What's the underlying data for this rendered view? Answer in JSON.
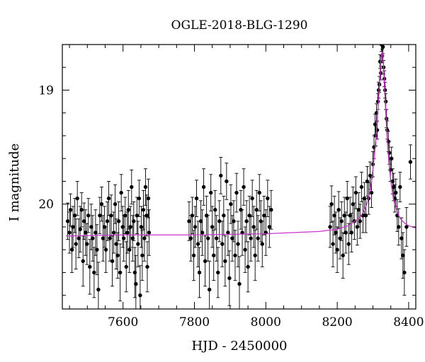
{
  "chart_data": {
    "type": "scatter",
    "title": "OGLE-2018-BLG-1290",
    "xlabel": "HJD - 2450000",
    "ylabel": "I magnitude",
    "xlim": [
      7430,
      8420
    ],
    "ylim": [
      20.92,
      18.6
    ],
    "y_inverted": true,
    "x_ticks": [
      7600,
      7800,
      8000,
      8200,
      8400
    ],
    "y_ticks": [
      19,
      20
    ],
    "x_minor_step": 50,
    "y_minor_step": 0.2,
    "grid": false,
    "legend": "none",
    "colors": {
      "points": "#000000",
      "errorbars": "#000000",
      "model": "#cc33cc"
    },
    "series": [
      {
        "kind": "observations",
        "points": [
          [
            7445,
            20.15,
            0.16
          ],
          [
            7450,
            20.25,
            0.18
          ],
          [
            7453,
            20.05,
            0.14
          ],
          [
            7457,
            20.4,
            0.2
          ],
          [
            7460,
            20.2,
            0.18
          ],
          [
            7465,
            20.1,
            0.15
          ],
          [
            7468,
            20.35,
            0.22
          ],
          [
            7472,
            19.95,
            0.15
          ],
          [
            7476,
            20.3,
            0.17
          ],
          [
            7480,
            20.22,
            0.2
          ],
          [
            7484,
            20.05,
            0.15
          ],
          [
            7488,
            20.5,
            0.22
          ],
          [
            7491,
            20.15,
            0.16
          ],
          [
            7495,
            20.25,
            0.2
          ],
          [
            7499,
            20.35,
            0.18
          ],
          [
            7503,
            20.1,
            0.15
          ],
          [
            7507,
            20.55,
            0.24
          ],
          [
            7511,
            20.2,
            0.2
          ],
          [
            7515,
            20.3,
            0.2
          ],
          [
            7519,
            20.6,
            0.22
          ],
          [
            7523,
            20.25,
            0.2
          ],
          [
            7527,
            20.4,
            0.22
          ],
          [
            7531,
            20.75,
            0.24
          ],
          [
            7535,
            20.1,
            0.16
          ],
          [
            7540,
            20.0,
            0.15
          ],
          [
            7544,
            20.3,
            0.2
          ],
          [
            7548,
            20.2,
            0.18
          ],
          [
            7552,
            20.4,
            0.2
          ],
          [
            7556,
            20.15,
            0.17
          ],
          [
            7560,
            19.95,
            0.15
          ],
          [
            7563,
            20.3,
            0.2
          ],
          [
            7567,
            20.1,
            0.18
          ],
          [
            7570,
            20.5,
            0.22
          ],
          [
            7574,
            20.25,
            0.18
          ],
          [
            7578,
            20.0,
            0.17
          ],
          [
            7581,
            20.35,
            0.22
          ],
          [
            7585,
            20.45,
            0.2
          ],
          [
            7588,
            20.15,
            0.17
          ],
          [
            7592,
            20.6,
            0.25
          ],
          [
            7595,
            19.9,
            0.16
          ],
          [
            7599,
            20.2,
            0.18
          ],
          [
            7602,
            20.3,
            0.2
          ],
          [
            7606,
            20.1,
            0.16
          ],
          [
            7609,
            20.55,
            0.22
          ],
          [
            7612,
            20.25,
            0.18
          ],
          [
            7615,
            20.05,
            0.17
          ],
          [
            7618,
            20.4,
            0.2
          ],
          [
            7621,
            20.2,
            0.18
          ],
          [
            7624,
            19.85,
            0.15
          ],
          [
            7627,
            20.3,
            0.2
          ],
          [
            7630,
            20.15,
            0.17
          ],
          [
            7633,
            20.6,
            0.22
          ],
          [
            7636,
            20.7,
            0.25
          ],
          [
            7639,
            20.1,
            0.16
          ],
          [
            7642,
            20.35,
            0.2
          ],
          [
            7645,
            19.95,
            0.16
          ],
          [
            7648,
            20.8,
            0.26
          ],
          [
            7651,
            20.2,
            0.18
          ],
          [
            7654,
            20.45,
            0.22
          ],
          [
            7657,
            20.05,
            0.17
          ],
          [
            7660,
            20.3,
            0.2
          ],
          [
            7663,
            19.85,
            0.16
          ],
          [
            7666,
            20.1,
            0.18
          ],
          [
            7668,
            20.55,
            0.22
          ],
          [
            7671,
            19.95,
            0.17
          ],
          [
            7673,
            20.25,
            0.2
          ],
          [
            7785,
            20.15,
            0.17
          ],
          [
            7790,
            20.3,
            0.2
          ],
          [
            7794,
            20.1,
            0.16
          ],
          [
            7798,
            20.45,
            0.22
          ],
          [
            7802,
            20.2,
            0.18
          ],
          [
            7806,
            19.95,
            0.16
          ],
          [
            7810,
            20.35,
            0.2
          ],
          [
            7814,
            20.6,
            0.22
          ],
          [
            7818,
            20.15,
            0.18
          ],
          [
            7822,
            20.25,
            0.2
          ],
          [
            7826,
            19.85,
            0.16
          ],
          [
            7830,
            20.5,
            0.22
          ],
          [
            7834,
            20.1,
            0.17
          ],
          [
            7838,
            20.3,
            0.2
          ],
          [
            7842,
            20.75,
            0.25
          ],
          [
            7846,
            19.9,
            0.16
          ],
          [
            7850,
            20.2,
            0.18
          ],
          [
            7854,
            20.45,
            0.22
          ],
          [
            7858,
            20.05,
            0.17
          ],
          [
            7862,
            20.3,
            0.2
          ],
          [
            7866,
            20.6,
            0.22
          ],
          [
            7870,
            20.15,
            0.18
          ],
          [
            7874,
            19.75,
            0.16
          ],
          [
            7878,
            20.35,
            0.2
          ],
          [
            7882,
            20.1,
            0.17
          ],
          [
            7886,
            20.5,
            0.22
          ],
          [
            7890,
            19.8,
            0.16
          ],
          [
            7894,
            20.25,
            0.2
          ],
          [
            7898,
            20.65,
            0.24
          ],
          [
            7902,
            20.0,
            0.17
          ],
          [
            7906,
            20.3,
            0.2
          ],
          [
            7910,
            20.15,
            0.18
          ],
          [
            7914,
            20.45,
            0.22
          ],
          [
            7918,
            19.9,
            0.17
          ],
          [
            7922,
            20.35,
            0.2
          ],
          [
            7926,
            20.7,
            0.24
          ],
          [
            7930,
            20.05,
            0.17
          ],
          [
            7934,
            20.25,
            0.2
          ],
          [
            7938,
            19.85,
            0.16
          ],
          [
            7942,
            20.4,
            0.2
          ],
          [
            7946,
            20.15,
            0.18
          ],
          [
            7950,
            20.55,
            0.22
          ],
          [
            7954,
            20.1,
            0.17
          ],
          [
            7958,
            20.3,
            0.2
          ],
          [
            7962,
            19.95,
            0.16
          ],
          [
            7966,
            20.2,
            0.18
          ],
          [
            7970,
            20.45,
            0.22
          ],
          [
            7974,
            20.05,
            0.17
          ],
          [
            7978,
            20.3,
            0.2
          ],
          [
            7982,
            19.9,
            0.16
          ],
          [
            7986,
            20.15,
            0.18
          ],
          [
            7990,
            20.35,
            0.2
          ],
          [
            7995,
            20.1,
            0.17
          ],
          [
            8000,
            20.25,
            0.2
          ],
          [
            8005,
            19.95,
            0.16
          ],
          [
            8010,
            20.2,
            0.18
          ],
          [
            8015,
            20.05,
            0.17
          ],
          [
            8180,
            20.2,
            0.18
          ],
          [
            8184,
            20.0,
            0.16
          ],
          [
            8188,
            20.35,
            0.2
          ],
          [
            8192,
            20.1,
            0.17
          ],
          [
            8196,
            20.25,
            0.18
          ],
          [
            8200,
            20.4,
            0.2
          ],
          [
            8204,
            20.05,
            0.16
          ],
          [
            8208,
            20.3,
            0.18
          ],
          [
            8212,
            20.15,
            0.17
          ],
          [
            8216,
            20.45,
            0.2
          ],
          [
            8220,
            20.1,
            0.16
          ],
          [
            8224,
            20.25,
            0.18
          ],
          [
            8228,
            19.95,
            0.15
          ],
          [
            8232,
            20.35,
            0.18
          ],
          [
            8236,
            20.1,
            0.16
          ],
          [
            8240,
            20.25,
            0.17
          ],
          [
            8244,
            20.0,
            0.15
          ],
          [
            8248,
            20.15,
            0.16
          ],
          [
            8252,
            19.9,
            0.14
          ],
          [
            8256,
            20.2,
            0.16
          ],
          [
            8260,
            20.05,
            0.15
          ],
          [
            8264,
            20.15,
            0.15
          ],
          [
            8268,
            19.85,
            0.13
          ],
          [
            8272,
            20.1,
            0.15
          ],
          [
            8276,
            19.95,
            0.14
          ],
          [
            8280,
            20.1,
            0.15
          ],
          [
            8284,
            19.8,
            0.13
          ],
          [
            8288,
            19.95,
            0.14
          ],
          [
            8292,
            19.75,
            0.12
          ],
          [
            8296,
            19.9,
            0.13
          ],
          [
            8300,
            19.65,
            0.11
          ],
          [
            8303,
            19.5,
            0.1
          ],
          [
            8306,
            19.3,
            0.09
          ],
          [
            8308,
            19.4,
            0.09
          ],
          [
            8310,
            19.2,
            0.08
          ],
          [
            8312,
            19.35,
            0.08
          ],
          [
            8314,
            19.1,
            0.07
          ],
          [
            8316,
            19.0,
            0.07
          ],
          [
            8318,
            18.95,
            0.07
          ],
          [
            8320,
            18.75,
            0.06
          ],
          [
            8322,
            18.85,
            0.06
          ],
          [
            8324,
            18.6,
            0.06
          ],
          [
            8326,
            18.7,
            0.06
          ],
          [
            8328,
            18.62,
            0.06
          ],
          [
            8330,
            18.8,
            0.06
          ],
          [
            8332,
            18.9,
            0.07
          ],
          [
            8334,
            19.0,
            0.07
          ],
          [
            8336,
            19.1,
            0.07
          ],
          [
            8338,
            19.25,
            0.08
          ],
          [
            8340,
            19.35,
            0.08
          ],
          [
            8343,
            19.45,
            0.09
          ],
          [
            8346,
            19.55,
            0.1
          ],
          [
            8349,
            19.7,
            0.1
          ],
          [
            8352,
            19.6,
            0.1
          ],
          [
            8355,
            19.8,
            0.11
          ],
          [
            8358,
            19.85,
            0.12
          ],
          [
            8361,
            19.95,
            0.12
          ],
          [
            8364,
            19.9,
            0.12
          ],
          [
            8368,
            20.1,
            0.14
          ],
          [
            8372,
            20.2,
            0.16
          ],
          [
            8376,
            19.85,
            0.13
          ],
          [
            8380,
            20.3,
            0.18
          ],
          [
            8384,
            20.45,
            0.2
          ],
          [
            8388,
            20.6,
            0.2
          ],
          [
            8394,
            20.2,
            0.17
          ],
          [
            8405,
            19.63,
            0.15
          ]
        ]
      },
      {
        "kind": "model",
        "x": [
          7440,
          7600,
          7800,
          8000,
          8150,
          8200,
          8230,
          8250,
          8265,
          8275,
          8285,
          8292,
          8298,
          8304,
          8308,
          8312,
          8316,
          8319,
          8322,
          8324,
          8326,
          8328,
          8330,
          8332,
          8335,
          8338,
          8342,
          8346,
          8350,
          8355,
          8360,
          8366,
          8372,
          8380,
          8390,
          8400,
          8410,
          8420
        ],
        "y": [
          20.28,
          20.27,
          20.27,
          20.26,
          20.24,
          20.22,
          20.19,
          20.15,
          20.11,
          20.06,
          19.98,
          19.88,
          19.75,
          19.58,
          19.43,
          19.26,
          19.07,
          18.9,
          18.75,
          18.68,
          18.66,
          18.7,
          18.82,
          18.95,
          19.14,
          19.33,
          19.53,
          19.68,
          19.8,
          19.91,
          19.99,
          20.05,
          20.1,
          20.14,
          20.17,
          20.19,
          20.2,
          20.21
        ]
      }
    ]
  }
}
